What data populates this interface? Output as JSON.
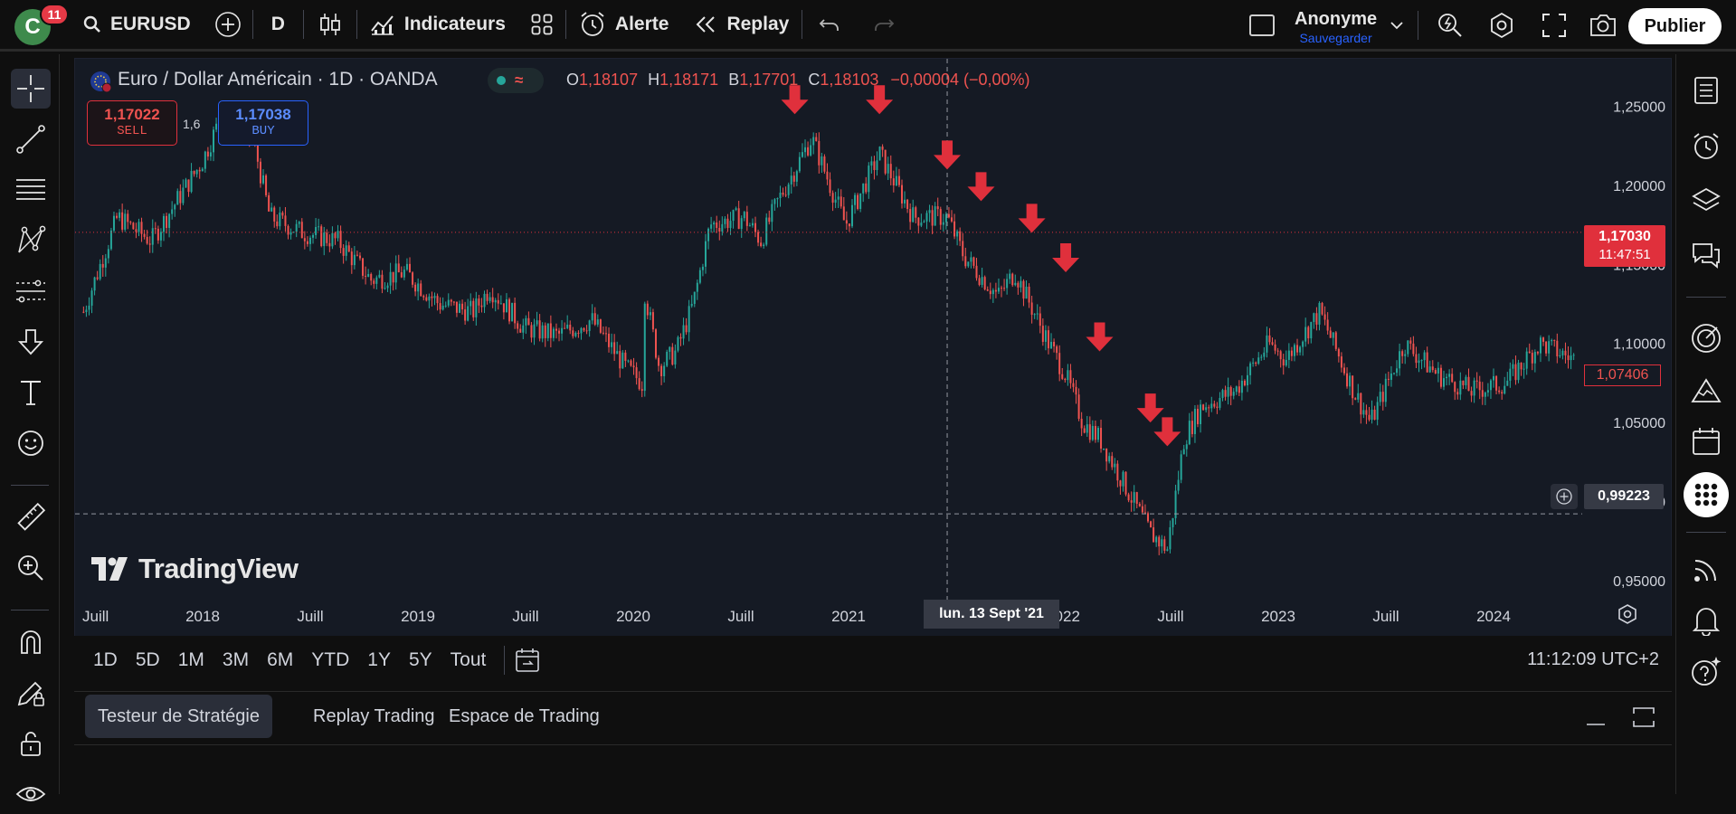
{
  "topbar": {
    "avatar_letter": "C",
    "notifications": "11",
    "symbol": "EURUSD",
    "interval": "D",
    "indicators": "Indicateurs",
    "alert": "Alerte",
    "replay": "Replay",
    "user_name": "Anonyme",
    "user_sub": "Sauvegarder",
    "publish": "Publier"
  },
  "legend": {
    "title": "Euro / Dollar Américain · 1D · OANDA",
    "o_label": "O",
    "o_value": "1,18107",
    "h_label": "H",
    "h_value": "1,18171",
    "b_label": "B",
    "b_value": "1,17701",
    "c_label": "C",
    "c_value": "1,18103",
    "change": "−0,00004 (−0,00%)"
  },
  "trade": {
    "sell_price": "1,17022",
    "sell_label": "SELL",
    "spread": "1,6",
    "buy_price": "1,17038",
    "buy_label": "BUY"
  },
  "price_axis": {
    "ticks": [
      {
        "label": "1,25000",
        "value": 1.25
      },
      {
        "label": "1,20000",
        "value": 1.2
      },
      {
        "label": "1,15000",
        "value": 1.15
      },
      {
        "label": "1,10000",
        "value": 1.1
      },
      {
        "label": "1,05000",
        "value": 1.05
      },
      {
        "label": "1,00000",
        "value": 1.0
      },
      {
        "label": "0,95000",
        "value": 0.95
      }
    ],
    "current_price": "1,17030",
    "countdown": "11:47:51",
    "marker_price": "1,07406",
    "crosshair_price": "0,99223"
  },
  "time_axis": {
    "ticks": [
      "Juill",
      "2018",
      "Juill",
      "2019",
      "Juill",
      "2020",
      "Juill",
      "2021",
      "Juill",
      "2022",
      "Juill",
      "2023",
      "Juill",
      "2024"
    ],
    "crosshair_date": "lun. 13 Sept '21"
  },
  "watermark": "TradingView",
  "ranges": [
    "1D",
    "5D",
    "1M",
    "3M",
    "6M",
    "YTD",
    "1Y",
    "5Y",
    "Tout"
  ],
  "clock": "11:12:09 UTC+2",
  "panel_tabs": [
    "Testeur de Stratégie",
    "Replay Trading",
    "Espace de Trading"
  ],
  "colors": {
    "up": "#26a69a",
    "down": "#ef5350",
    "arrow": "#e0303c",
    "accent": "#2962ff"
  },
  "chart_data": {
    "type": "candlestick",
    "title": "Euro / Dollar Américain · 1D · OANDA",
    "ylim": [
      0.93,
      1.27
    ],
    "x_range": [
      "2017-06",
      "2024-10"
    ],
    "series": [
      {
        "name": "EURUSD",
        "values": [
          [
            "2017-06",
            1.12
          ],
          [
            "2017-08",
            1.18
          ],
          [
            "2017-10",
            1.165
          ],
          [
            "2018-01",
            1.215
          ],
          [
            "2018-02",
            1.24
          ],
          [
            "2018-04",
            1.23
          ],
          [
            "2018-05",
            1.18
          ],
          [
            "2018-07",
            1.17
          ],
          [
            "2018-09",
            1.165
          ],
          [
            "2018-11",
            1.14
          ],
          [
            "2019-01",
            1.145
          ],
          [
            "2019-03",
            1.125
          ],
          [
            "2019-05",
            1.12
          ],
          [
            "2019-06",
            1.135
          ],
          [
            "2019-08",
            1.11
          ],
          [
            "2019-10",
            1.105
          ],
          [
            "2019-12",
            1.115
          ],
          [
            "2020-02",
            1.085
          ],
          [
            "2020-03",
            1.075
          ],
          [
            "2020-03",
            1.14
          ],
          [
            "2020-04",
            1.085
          ],
          [
            "2020-05",
            1.095
          ],
          [
            "2020-06",
            1.125
          ],
          [
            "2020-07",
            1.175
          ],
          [
            "2020-09",
            1.18
          ],
          [
            "2020-10",
            1.165
          ],
          [
            "2020-11",
            1.19
          ],
          [
            "2021-01",
            1.23
          ],
          [
            "2021-03",
            1.175
          ],
          [
            "2021-05",
            1.22
          ],
          [
            "2021-07",
            1.18
          ],
          [
            "2021-09",
            1.18
          ],
          [
            "2021-10",
            1.155
          ],
          [
            "2021-12",
            1.13
          ],
          [
            "2022-01",
            1.145
          ],
          [
            "2022-03",
            1.1
          ],
          [
            "2022-04",
            1.08
          ],
          [
            "2022-05",
            1.05
          ],
          [
            "2022-06",
            1.04
          ],
          [
            "2022-07",
            1.02
          ],
          [
            "2022-08",
            1.0
          ],
          [
            "2022-09",
            0.98
          ],
          [
            "2022-10",
            0.97
          ],
          [
            "2022-11",
            1.04
          ],
          [
            "2022-12",
            1.06
          ],
          [
            "2023-02",
            1.07
          ],
          [
            "2023-04",
            1.1
          ],
          [
            "2023-05",
            1.09
          ],
          [
            "2023-07",
            1.12
          ],
          [
            "2023-09",
            1.07
          ],
          [
            "2023-10",
            1.05
          ],
          [
            "2023-12",
            1.1
          ],
          [
            "2024-02",
            1.08
          ],
          [
            "2024-04",
            1.07
          ],
          [
            "2024-06",
            1.075
          ],
          [
            "2024-08",
            1.1
          ],
          [
            "2024-10",
            1.09
          ]
        ]
      }
    ],
    "annotations": "down arrows",
    "arrow_points": [
      [
        "2020-12",
        1.245
      ],
      [
        "2021-05",
        1.245
      ],
      [
        "2021-09",
        1.21
      ],
      [
        "2021-11",
        1.19
      ],
      [
        "2022-02",
        1.17
      ],
      [
        "2022-04",
        1.145
      ],
      [
        "2022-06",
        1.095
      ],
      [
        "2022-09",
        1.05
      ],
      [
        "2022-10",
        1.035
      ]
    ],
    "hlines": [
      1.1703,
      0.99223
    ],
    "crosshair_date": "2021-09-13"
  }
}
